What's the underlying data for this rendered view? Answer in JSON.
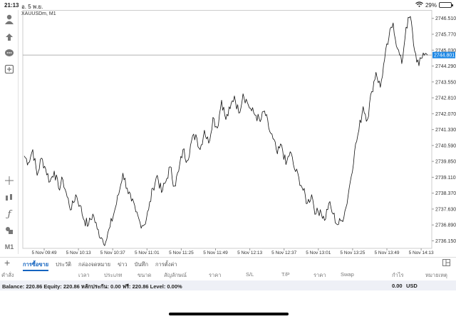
{
  "status": {
    "time": "21:13",
    "date": "อ. 5 พ.ย.",
    "battery": "29%",
    "battery_level": 0.29,
    "icons": [
      "wifi-icon",
      "battery-icon"
    ]
  },
  "chart": {
    "symbol": "XAUUSDm, M1",
    "current_price_label": "2744.801",
    "colors": {
      "line": "#111111",
      "grid": "#cccccc",
      "price_tag": "#1e88e5"
    }
  },
  "toolbar": {
    "m1_label": "M1",
    "icons": [
      "user-icon",
      "trade-icon",
      "chat-icon",
      "add-icon",
      "crosshair-icon",
      "indicators-icon",
      "function-icon",
      "objects-icon"
    ]
  },
  "chart_data": {
    "type": "line",
    "title": "XAUUSDm, M1",
    "y_ticks": [
      "2746.510",
      "2745.770",
      "2745.030",
      "2744.290",
      "2743.550",
      "2742.810",
      "2742.070",
      "2741.330",
      "2740.590",
      "2739.850",
      "2739.110",
      "2738.370",
      "2737.630",
      "2736.890",
      "2736.150"
    ],
    "x_ticks": [
      "5 Nov 09:49",
      "5 Nov 10:13",
      "5 Nov 10:37",
      "5 Nov 11:01",
      "5 Nov 11:25",
      "5 Nov 11:49",
      "5 Nov 12:13",
      "5 Nov 12:37",
      "5 Nov 13:01",
      "5 Nov 13:25",
      "5 Nov 13:49",
      "5 Nov 14:13"
    ],
    "ylim": [
      2735.8,
      2746.9
    ],
    "current_price": 2744.801,
    "series": [
      {
        "x_start": "5 Nov 09:49",
        "x_end": "5 Nov 14:13",
        "minutes_total": 264,
        "values": [
          2740.1,
          2739.8,
          2740.4,
          2739.2,
          2740.0,
          2739.5,
          2738.9,
          2739.4,
          2738.6,
          2739.0,
          2738.2,
          2737.6,
          2738.3,
          2737.8,
          2737.1,
          2736.9,
          2737.4,
          2736.7,
          2736.3,
          2736.1,
          2736.8,
          2737.5,
          2738.3,
          2739.3,
          2738.6,
          2738.0,
          2737.5,
          2737.0,
          2736.9,
          2737.6,
          2738.6,
          2739.2,
          2738.4,
          2738.9,
          2739.6,
          2738.7,
          2739.4,
          2740.4,
          2739.9,
          2740.8,
          2741.1,
          2740.4,
          2741.3,
          2740.7,
          2741.9,
          2741.4,
          2742.7,
          2741.8,
          2742.3,
          2742.9,
          2742.1,
          2743.0,
          2742.6,
          2742.2,
          2742.0,
          2741.7,
          2742.2,
          2741.4,
          2740.9,
          2740.2,
          2740.6,
          2739.7,
          2740.3,
          2739.5,
          2739.1,
          2738.5,
          2737.9,
          2738.3,
          2737.4,
          2737.6,
          2737.1,
          2737.9,
          2737.4,
          2736.9,
          2737.1,
          2737.7,
          2738.9,
          2740.3,
          2741.3,
          2742.4,
          2741.8,
          2743.1,
          2744.0,
          2743.3,
          2744.6,
          2745.6,
          2746.3,
          2745.1,
          2744.4,
          2746.1,
          2746.6,
          2745.0,
          2744.3,
          2744.9,
          2744.8
        ]
      }
    ]
  },
  "tabs": [
    {
      "label": "การซื้อขาย",
      "active": true
    },
    {
      "label": "ประวัติ",
      "active": false
    },
    {
      "label": "กล่องจดหมาย",
      "active": false
    },
    {
      "label": "ข่าว",
      "active": false
    },
    {
      "label": "บันทึก",
      "active": false
    },
    {
      "label": "การตั้งค่า",
      "active": false
    }
  ],
  "columns": [
    "คำสั่ง",
    "เวลา",
    "ประเภท",
    "ขนาด",
    "สัญลักษณ์",
    "ราคา",
    "S/L",
    "T/P",
    "ราคา",
    "Swap",
    "กำไร",
    "หมายเหตุ"
  ],
  "balance": {
    "text": "Balance: 220.86 Equity: 220.86 หลักประกัน: 0.00 ฟรี: 220.86 Level: 0.00%",
    "profit": "0.00",
    "currency": "USD"
  }
}
